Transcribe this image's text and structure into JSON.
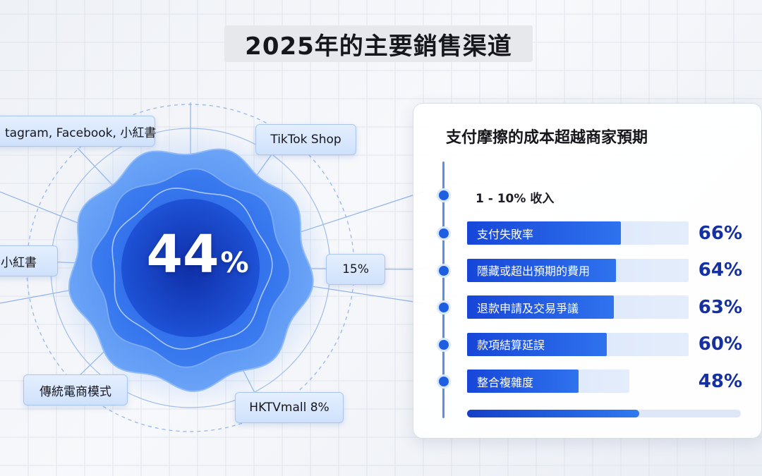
{
  "page": {
    "title": "2025年的主要銷售渠道"
  },
  "colors": {
    "accent": "#1d5fe0",
    "value_text": "#1530a0",
    "pill_bg": "#d8e7fc"
  },
  "chart_data": [
    {
      "type": "radial-infographic",
      "center_value": {
        "number": "44",
        "unit": "%"
      },
      "channels": [
        {
          "label": "Instagram, Facebook, 小紅書",
          "visible_text": "tagram, Facebook, 小紅書"
        },
        {
          "label": "TikTok Shop",
          "visible_text": "TikTok Shop"
        },
        {
          "label": "小紅書",
          "visible_text": "小紅書"
        },
        {
          "label": "15%",
          "visible_text": "15%"
        },
        {
          "label": "傳統電商模式",
          "visible_text": "傳統電商模式"
        },
        {
          "label": "HKTVmall 8%",
          "visible_text": "HKTVmall 8%"
        }
      ]
    },
    {
      "type": "bar",
      "orientation": "horizontal",
      "title": "支付摩擦的成本超越商家預期",
      "subtitle": "1 - 10% 收入",
      "unit": "%",
      "categories": [
        "支付失敗率",
        "隱藏或超出預期的費用",
        "退款申請及交易爭議",
        "款項結算延誤",
        "整合複雜度"
      ],
      "values": [
        66,
        64,
        63,
        60,
        48
      ],
      "value_labels": [
        "66%",
        "64%",
        "63%",
        "60%",
        "48%"
      ],
      "xlim": [
        0,
        100
      ],
      "summary_bar_fraction": 0.63
    }
  ]
}
